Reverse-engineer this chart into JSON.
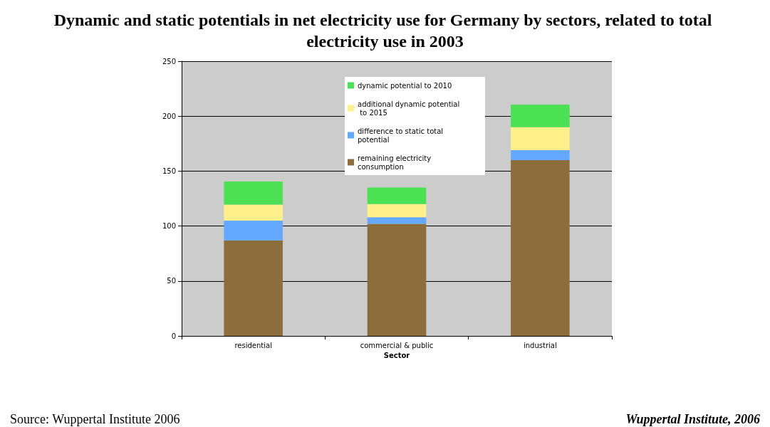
{
  "chart_data": {
    "type": "bar",
    "title": "Dynamic and static potentials in net electricity use for Germany by sectors, related to total electricity use in 2003",
    "xlabel": "Sector",
    "categories": [
      "residential",
      "commercial & public",
      "industrial"
    ],
    "stacked": true,
    "ylim": [
      0,
      250
    ],
    "yticks": [
      0,
      50,
      100,
      150,
      200,
      250
    ],
    "grid": "y",
    "legend": "top",
    "series": [
      {
        "name": "remaining electricity consumption",
        "color": "#8c6e3c",
        "values": [
          87,
          102,
          160
        ]
      },
      {
        "name": "difference to static total potential",
        "color": "#63a9ff",
        "values": [
          18,
          6,
          9
        ]
      },
      {
        "name": "additional dynamic potential to 2015",
        "color": "#fff08c",
        "values": [
          14.5,
          12,
          21
        ]
      },
      {
        "name": "dynamic potential to 2010",
        "color": "#4ce155",
        "values": [
          21,
          15,
          20.5
        ]
      }
    ],
    "annotations": [
      "Source: Wuppertal Institute 2006",
      "Wuppertal Institute, 2006"
    ]
  }
}
